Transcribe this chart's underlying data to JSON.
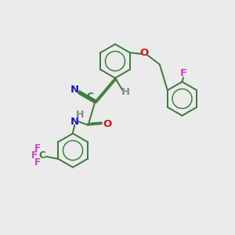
{
  "bg_color": "#ebebeb",
  "bond_color": "#3a7a3a",
  "n_color": "#1a1acc",
  "o_color": "#cc1a1a",
  "f_color": "#cc44cc",
  "h_color": "#888888",
  "figsize": [
    3.0,
    3.0
  ],
  "dpi": 100,
  "ring_r": 0.72,
  "lw": 1.4,
  "atoms": {
    "N_label": "N",
    "O_label": "O",
    "F_top": "F",
    "F1": "F",
    "F2": "F",
    "F3": "F",
    "H_vinyl": "H",
    "H_amide": "H",
    "C_vinyl": "C",
    "N_triple": "N"
  }
}
